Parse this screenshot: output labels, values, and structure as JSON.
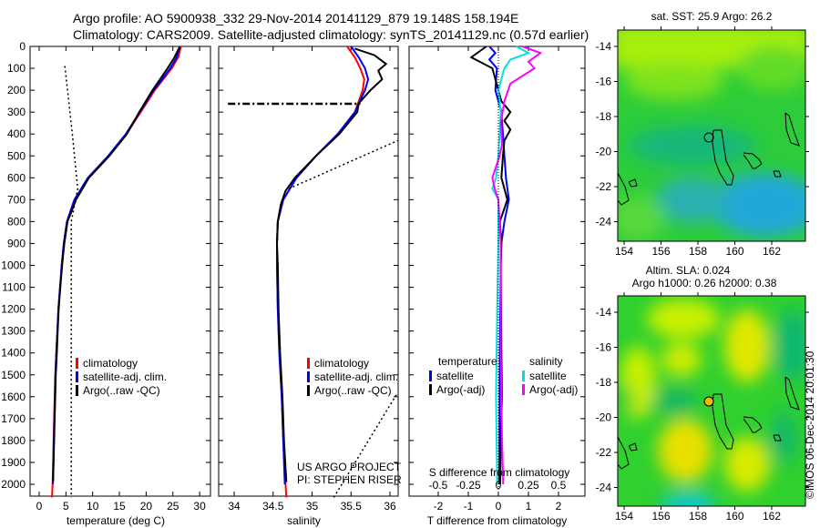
{
  "title": {
    "line1": "Argo profile: AO 5900938_332 29-Nov-2014 20141129_879 19.148S 158.194E",
    "line2": "Climatology: CARS2009. Satellite-adjusted climatology: synTS_20141129.nc (0.57d earlier)"
  },
  "colors": {
    "climatology": "#ff0000",
    "satellite": "#0000ff",
    "argo": "#000000",
    "sal_satellite": "#00e0e0",
    "sal_argo": "#ff00ff",
    "marker": "#f5b800"
  },
  "chart_data": [
    {
      "type": "line",
      "id": "temperature",
      "xlabel": "temperature (deg C)",
      "xlim": [
        -2,
        32
      ],
      "xticks": [
        0,
        5,
        10,
        15,
        20,
        25,
        30
      ],
      "ylim": [
        2060,
        0
      ],
      "yticks": [
        0,
        100,
        200,
        300,
        400,
        500,
        600,
        700,
        800,
        900,
        1000,
        1100,
        1200,
        1300,
        1400,
        1500,
        1600,
        1700,
        1800,
        1900,
        2000
      ],
      "legend": [
        "climatology",
        "satellite-adj. clim.",
        "Argo(..raw -QC)"
      ],
      "series": [
        {
          "name": "climatology",
          "color": "#ff0000",
          "points": [
            [
              26.5,
              0
            ],
            [
              26,
              50
            ],
            [
              24.8,
              100
            ],
            [
              23.2,
              150
            ],
            [
              21.6,
              200
            ],
            [
              19,
              300
            ],
            [
              16.3,
              400
            ],
            [
              13,
              500
            ],
            [
              9.2,
              600
            ],
            [
              6.6,
              700
            ],
            [
              5.2,
              800
            ],
            [
              4.6,
              900
            ],
            [
              4.2,
              1000
            ],
            [
              3.9,
              1100
            ],
            [
              3.6,
              1200
            ],
            [
              3.4,
              1300
            ],
            [
              3.2,
              1400
            ],
            [
              3,
              1500
            ],
            [
              2.9,
              1600
            ],
            [
              2.8,
              1700
            ],
            [
              2.7,
              1800
            ],
            [
              2.6,
              1900
            ],
            [
              2.5,
              2000
            ],
            [
              2.4,
              2060
            ]
          ]
        },
        {
          "name": "satellite-adj. clim.",
          "color": "#0000ff",
          "points": [
            [
              26.3,
              0
            ],
            [
              25.7,
              50
            ],
            [
              24.5,
              100
            ],
            [
              23,
              150
            ],
            [
              21.4,
              200
            ],
            [
              18.8,
              300
            ],
            [
              16.2,
              400
            ],
            [
              12.9,
              500
            ],
            [
              9.1,
              600
            ],
            [
              6.6,
              700
            ],
            [
              5.2,
              800
            ],
            [
              4.6,
              900
            ],
            [
              4.2,
              1000
            ],
            [
              3.9,
              1100
            ],
            [
              3.6,
              1200
            ],
            [
              3.4,
              1300
            ],
            [
              3.2,
              1400
            ],
            [
              3.05,
              1500
            ],
            [
              2.95,
              1600
            ],
            [
              2.85,
              1700
            ],
            [
              2.75,
              1800
            ],
            [
              2.65,
              1900
            ],
            [
              2.55,
              2000
            ]
          ]
        },
        {
          "name": "Argo(..raw -QC)",
          "color": "#000000",
          "points": [
            [
              26.2,
              5
            ],
            [
              25.3,
              50
            ],
            [
              24,
              100
            ],
            [
              22.6,
              150
            ],
            [
              21.2,
              200
            ],
            [
              18.7,
              300
            ],
            [
              16.4,
              400
            ],
            [
              13.1,
              500
            ],
            [
              9.3,
              600
            ],
            [
              6.9,
              700
            ],
            [
              5.3,
              800
            ],
            [
              4.7,
              900
            ],
            [
              4.3,
              1000
            ],
            [
              3.95,
              1100
            ],
            [
              3.65,
              1200
            ],
            [
              3.45,
              1300
            ],
            [
              3.3,
              1400
            ],
            [
              3.1,
              1500
            ],
            [
              3,
              1600
            ],
            [
              2.9,
              1700
            ],
            [
              2.8,
              1800
            ],
            [
              2.7,
              1900
            ],
            [
              2.6,
              1990
            ]
          ]
        },
        {
          "name": "reference",
          "color": "#000000",
          "dotted": true,
          "points": [
            [
              4.8,
              90
            ],
            [
              6.2,
              400
            ],
            [
              7.2,
              650
            ],
            [
              6,
              800
            ],
            [
              6,
              2060
            ]
          ]
        }
      ]
    },
    {
      "type": "line",
      "id": "salinity",
      "xlabel": "salinity",
      "xlim": [
        33.8,
        36.1
      ],
      "xticks": [
        34,
        34.5,
        35,
        35.5,
        36
      ],
      "ylim": [
        2060,
        0
      ],
      "legend": [
        "climatology",
        "satellite-adj. clim.",
        "Argo(..raw -QC)"
      ],
      "annotation": [
        "US ARGO PROJECT",
        "PI: STEPHEN RISER"
      ],
      "series": [
        {
          "name": "climatology",
          "color": "#ff0000",
          "points": [
            [
              35.45,
              0
            ],
            [
              35.55,
              50
            ],
            [
              35.62,
              100
            ],
            [
              35.67,
              150
            ],
            [
              35.65,
              200
            ],
            [
              35.55,
              300
            ],
            [
              35.33,
              400
            ],
            [
              35.05,
              500
            ],
            [
              34.8,
              600
            ],
            [
              34.63,
              700
            ],
            [
              34.56,
              800
            ],
            [
              34.55,
              900
            ],
            [
              34.55,
              1000
            ],
            [
              34.56,
              1200
            ],
            [
              34.58,
              1400
            ],
            [
              34.61,
              1600
            ],
            [
              34.63,
              1800
            ],
            [
              34.66,
              2000
            ],
            [
              34.67,
              2060
            ]
          ]
        },
        {
          "name": "satellite-adj. clim.",
          "color": "#0000ff",
          "points": [
            [
              35.5,
              0
            ],
            [
              35.6,
              50
            ],
            [
              35.68,
              100
            ],
            [
              35.72,
              150
            ],
            [
              35.68,
              200
            ],
            [
              35.55,
              300
            ],
            [
              35.33,
              400
            ],
            [
              35.05,
              500
            ],
            [
              34.8,
              600
            ],
            [
              34.63,
              700
            ],
            [
              34.56,
              800
            ],
            [
              34.55,
              900
            ],
            [
              34.55,
              1000
            ],
            [
              34.56,
              1200
            ],
            [
              34.58,
              1400
            ],
            [
              34.61,
              1600
            ],
            [
              34.63,
              1800
            ],
            [
              34.65,
              2000
            ]
          ]
        },
        {
          "name": "Argo(..raw -QC)",
          "color": "#000000",
          "points": [
            [
              35.55,
              10
            ],
            [
              35.8,
              40
            ],
            [
              35.95,
              80
            ],
            [
              35.85,
              110
            ],
            [
              35.9,
              150
            ],
            [
              35.75,
              200
            ],
            [
              35.6,
              260
            ],
            [
              35.58,
              300
            ],
            [
              35.35,
              400
            ],
            [
              35.05,
              500
            ],
            [
              34.78,
              600
            ],
            [
              34.66,
              660
            ],
            [
              34.6,
              720
            ],
            [
              34.56,
              800
            ],
            [
              34.55,
              900
            ],
            [
              34.56,
              1000
            ],
            [
              34.57,
              1200
            ],
            [
              34.59,
              1400
            ],
            [
              34.62,
              1600
            ],
            [
              34.64,
              1800
            ],
            [
              34.67,
              1990
            ]
          ]
        },
        {
          "name": "reference-dashdot",
          "color": "#000000",
          "dashdot": true,
          "points": [
            [
              33.92,
              262
            ],
            [
              35.62,
              262
            ]
          ]
        },
        {
          "name": "reference-upper",
          "color": "#000000",
          "dotted": true,
          "points": [
            [
              34.7,
              650
            ],
            [
              36.1,
              430
            ]
          ]
        },
        {
          "name": "reference-lower",
          "color": "#000000",
          "dotted": true,
          "points": [
            [
              35.28,
              2060
            ],
            [
              36.1,
              1580
            ]
          ]
        }
      ]
    },
    {
      "type": "line",
      "id": "difference",
      "xlabel": "T difference from climatology",
      "xlabel_top": "S difference from climatology",
      "xlim": [
        -3,
        2.9
      ],
      "xticks": [
        -2,
        -1,
        0,
        1,
        2
      ],
      "xticks_s": [
        -0.5,
        -0.25,
        0,
        0.25,
        0.5
      ],
      "ylim": [
        2060,
        0
      ],
      "legend": {
        "temperature_title": "temperature",
        "salinity_title": "salinity",
        "items": [
          "satellite",
          "Argo(-adj)",
          "satellite",
          "Argo(-adj)"
        ]
      },
      "series": [
        {
          "name": "T satellite",
          "color": "#0000ff",
          "points": [
            [
              -0.3,
              0
            ],
            [
              -0.1,
              30
            ],
            [
              -0.3,
              60
            ],
            [
              -0.05,
              100
            ],
            [
              -0.1,
              200
            ],
            [
              0.1,
              300
            ],
            [
              0.15,
              400
            ],
            [
              0.2,
              500
            ],
            [
              0.25,
              600
            ],
            [
              0.35,
              700
            ],
            [
              0.2,
              800
            ],
            [
              0.1,
              900
            ],
            [
              0.08,
              1000
            ],
            [
              0.05,
              1400
            ],
            [
              0.03,
              2000
            ]
          ]
        },
        {
          "name": "T Argo(-adj)",
          "color": "#000000",
          "points": [
            [
              -0.4,
              0
            ],
            [
              -0.9,
              50
            ],
            [
              -0.2,
              100
            ],
            [
              -0.1,
              150
            ],
            [
              0,
              200
            ],
            [
              0.1,
              250
            ],
            [
              0.4,
              300
            ],
            [
              0.2,
              340
            ],
            [
              0.4,
              380
            ],
            [
              0.2,
              430
            ],
            [
              0.15,
              500
            ],
            [
              0.1,
              600
            ],
            [
              0.3,
              700
            ],
            [
              0.05,
              800
            ],
            [
              0.1,
              900
            ],
            [
              0.08,
              1000
            ],
            [
              0.1,
              1400
            ],
            [
              0.12,
              1600
            ],
            [
              0.08,
              1800
            ],
            [
              0.06,
              2000
            ]
          ]
        },
        {
          "name": "S satellite",
          "color": "#00e0e0",
          "points": [
            [
              0.15,
              0
            ],
            [
              0.25,
              30
            ],
            [
              0.1,
              60
            ],
            [
              0.05,
              100
            ],
            [
              0,
              200
            ],
            [
              0.02,
              300
            ],
            [
              0.01,
              400
            ],
            [
              0,
              500
            ],
            [
              -0.02,
              600
            ],
            [
              -0.05,
              650
            ],
            [
              0,
              700
            ],
            [
              0,
              900
            ],
            [
              -0.01,
              1200
            ],
            [
              -0.02,
              1600
            ],
            [
              -0.01,
              2000
            ]
          ]
        },
        {
          "name": "S Argo(-adj)",
          "color": "#ff00ff",
          "points": [
            [
              0.2,
              0
            ],
            [
              0.35,
              30
            ],
            [
              0.25,
              70
            ],
            [
              0.3,
              100
            ],
            [
              0.1,
              170
            ],
            [
              0.05,
              250
            ],
            [
              0.02,
              350
            ],
            [
              0.03,
              450
            ],
            [
              0.01,
              500
            ],
            [
              -0.05,
              600
            ],
            [
              -0.03,
              650
            ],
            [
              0,
              700
            ],
            [
              0.02,
              900
            ],
            [
              0.02,
              1400
            ],
            [
              0.03,
              1800
            ],
            [
              0.04,
              2000
            ]
          ]
        }
      ]
    },
    {
      "type": "heatmap",
      "id": "sst-map",
      "title": "sat. SST: 25.9 Argo: 26.2",
      "xticks": [
        154,
        156,
        158,
        160,
        162
      ],
      "yticks": [
        -14,
        -16,
        -18,
        -20,
        -22,
        -24
      ],
      "xlim": [
        153,
        163.5
      ],
      "ylim": [
        -25,
        -13.3
      ],
      "argo_position": [
        158.194,
        -19.148
      ]
    },
    {
      "type": "heatmap",
      "id": "sla-map",
      "title": "Altim. SLA: 0.024",
      "subtitle": "Argo h1000: 0.26 h2000: 0.38",
      "xticks": [
        154,
        156,
        158,
        160,
        162
      ],
      "yticks": [
        -14,
        -16,
        -18,
        -20,
        -22,
        -24
      ],
      "xlim": [
        153,
        163.5
      ],
      "ylim": [
        -25,
        -13.3
      ],
      "argo_position": [
        158.194,
        -19.148
      ]
    }
  ],
  "footer": {
    "credit": "©IMOS 06-Dec-2014 20:01:30"
  }
}
